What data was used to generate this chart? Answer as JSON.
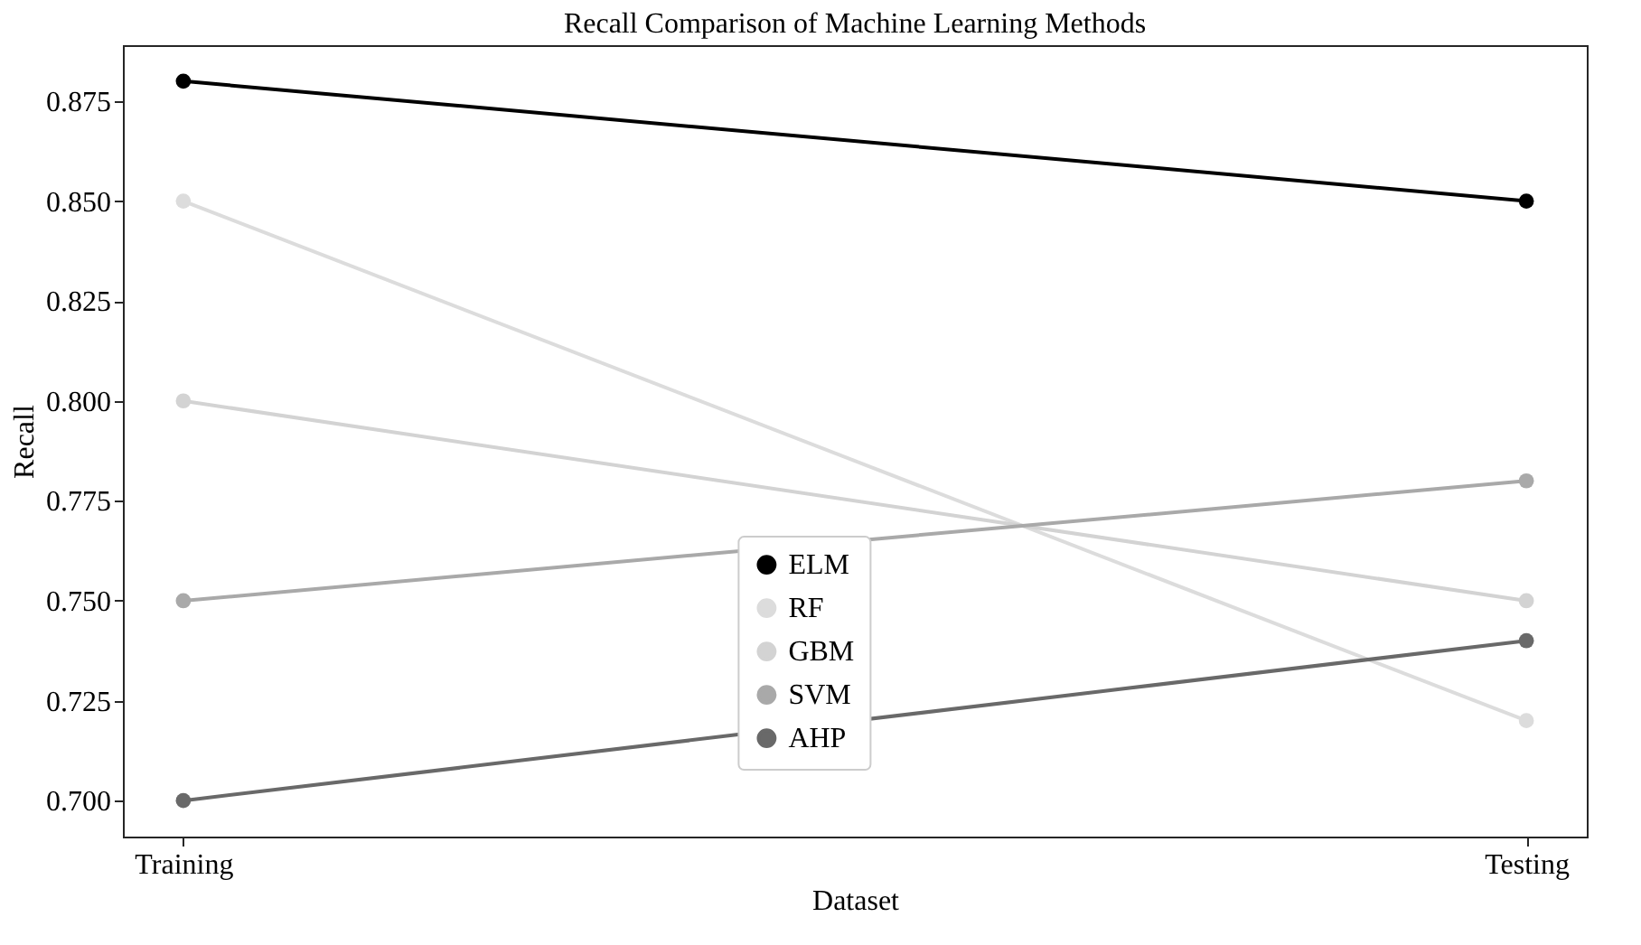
{
  "chart_data": {
    "type": "line",
    "title": "Recall Comparison of Machine Learning Methods",
    "xlabel": "Dataset",
    "ylabel": "Recall",
    "categories": [
      "Training",
      "Testing"
    ],
    "series": [
      {
        "name": "ELM",
        "color": "#000000",
        "values": [
          0.88,
          0.85
        ]
      },
      {
        "name": "RF",
        "color": "#dcdcdc",
        "values": [
          0.85,
          0.72
        ]
      },
      {
        "name": "GBM",
        "color": "#d3d3d3",
        "values": [
          0.8,
          0.75
        ]
      },
      {
        "name": "SVM",
        "color": "#a9a9a9",
        "values": [
          0.75,
          0.78
        ]
      },
      {
        "name": "AHP",
        "color": "#696969",
        "values": [
          0.7,
          0.74
        ]
      }
    ],
    "ylim": [
      0.691,
      0.889
    ],
    "yticks": [
      {
        "value": 0.7,
        "label": "0.700"
      },
      {
        "value": 0.725,
        "label": "0.725"
      },
      {
        "value": 0.75,
        "label": "0.750"
      },
      {
        "value": 0.775,
        "label": "0.775"
      },
      {
        "value": 0.8,
        "label": "0.800"
      },
      {
        "value": 0.825,
        "label": "0.825"
      },
      {
        "value": 0.85,
        "label": "0.850"
      },
      {
        "value": 0.875,
        "label": "0.875"
      }
    ],
    "marker": "circle",
    "line_style": "solid",
    "grid": false,
    "legend": "bottom"
  }
}
